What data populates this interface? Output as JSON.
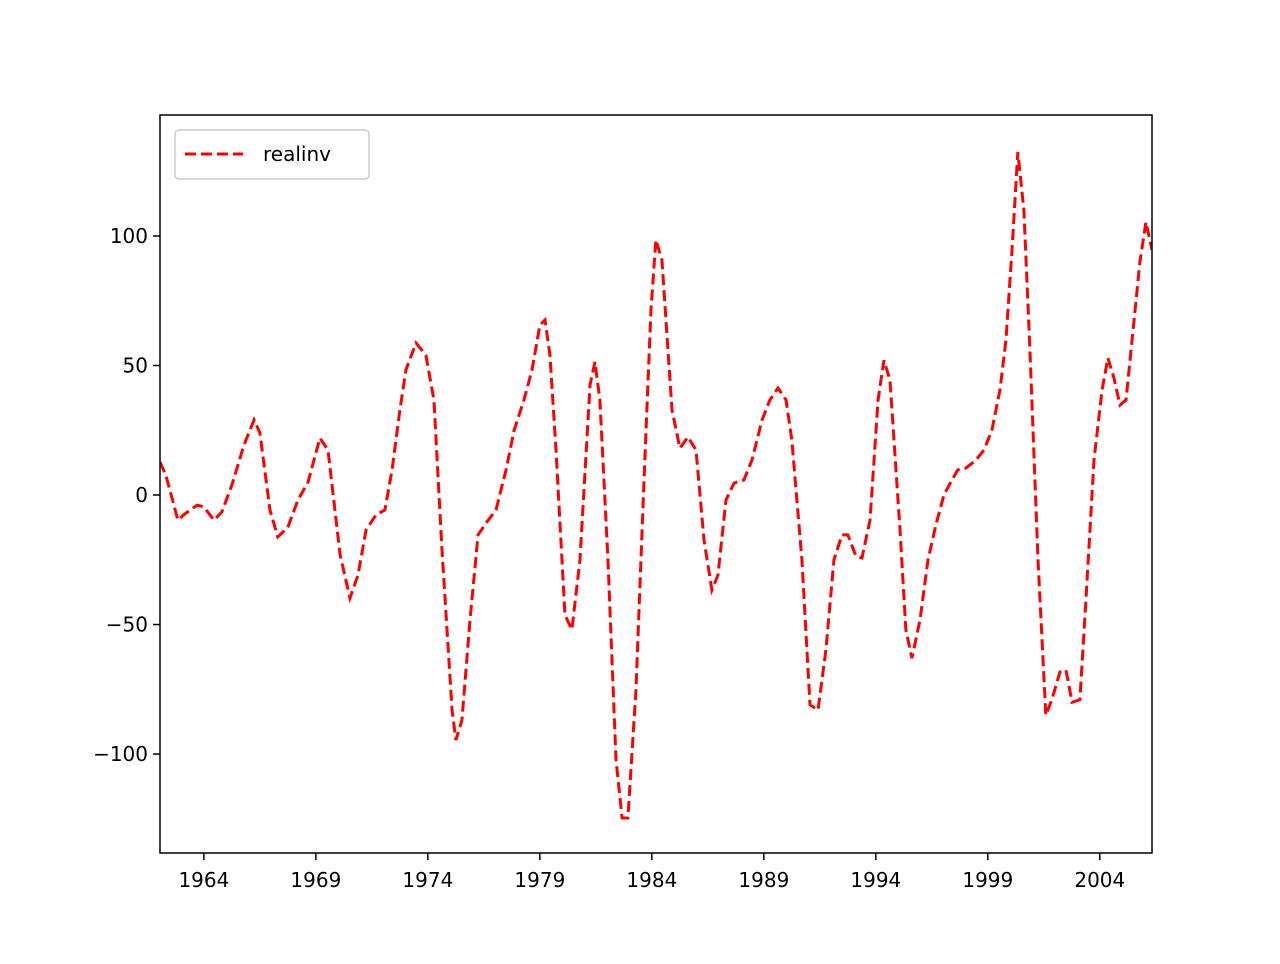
{
  "chart_data": {
    "type": "line",
    "x": [
      1962.04,
      1962.3,
      1962.84,
      1963.15,
      1963.7,
      1964.0,
      1964.45,
      1964.8,
      1965.25,
      1965.79,
      1966.24,
      1966.5,
      1966.95,
      1967.3,
      1967.75,
      1968.2,
      1968.65,
      1969.18,
      1969.54,
      1970.08,
      1970.52,
      1970.88,
      1971.24,
      1971.68,
      1972.08,
      1972.4,
      1972.75,
      1973.02,
      1973.47,
      1973.91,
      1974.27,
      1974.63,
      1975.08,
      1975.25,
      1975.52,
      1975.88,
      1976.24,
      1976.6,
      1977.04,
      1977.49,
      1977.85,
      1978.29,
      1978.65,
      1979.0,
      1979.23,
      1979.45,
      1979.72,
      1980.12,
      1980.43,
      1980.79,
      1981.24,
      1981.46,
      1981.68,
      1982.04,
      1982.4,
      1982.67,
      1982.93,
      1983.29,
      1983.65,
      1983.96,
      1984.18,
      1984.45,
      1984.9,
      1985.25,
      1985.61,
      1985.97,
      1986.33,
      1986.68,
      1986.95,
      1987.31,
      1987.67,
      1988.11,
      1988.47,
      1988.92,
      1989.27,
      1989.63,
      1989.99,
      1990.25,
      1990.7,
      1991.06,
      1991.42,
      1991.77,
      1992.13,
      1992.49,
      1992.75,
      1993.11,
      1993.38,
      1993.74,
      1994.1,
      1994.36,
      1994.63,
      1995.08,
      1995.34,
      1995.61,
      1995.97,
      1996.33,
      1996.68,
      1997.04,
      1997.4,
      1997.66,
      1998.02,
      1998.47,
      1998.83,
      1999.18,
      1999.54,
      1999.81,
      2000.08,
      2000.34,
      2000.61,
      2000.88,
      2001.24,
      2001.59,
      2001.86,
      2002.22,
      2002.49,
      2002.76,
      2003.11,
      2003.38,
      2003.74,
      2004.1,
      2004.36,
      2004.63,
      2004.9,
      2005.17,
      2005.44,
      2005.79,
      2006.06,
      2006.33
    ],
    "series": [
      {
        "name": "realinv",
        "color": "#ff0000",
        "dash": true,
        "values": [
          12.7,
          7.7,
          -9.7,
          -7.3,
          -3.9,
          -4.6,
          -9.7,
          -6.6,
          3.9,
          19.3,
          29,
          24,
          -5.8,
          -16.2,
          -12.4,
          -1.9,
          5,
          22,
          17.4,
          -23,
          -39.8,
          -30.9,
          -13.5,
          -7.7,
          -5.8,
          9.7,
          32.8,
          48.3,
          58.7,
          54,
          36.7,
          -21.2,
          -83,
          -94.6,
          -87,
          -48.3,
          -15.4,
          -10.8,
          -5.8,
          9.7,
          25,
          36.7,
          48.3,
          65.6,
          67.6,
          54,
          17.4,
          -46.3,
          -52,
          -25,
          42.5,
          51.4,
          36.7,
          -25,
          -102.3,
          -124.7,
          -124.7,
          -75.3,
          5.8,
          71.4,
          98.5,
          90.7,
          32.8,
          18.1,
          22.4,
          17.4,
          -17.4,
          -36.7,
          -30.9,
          -1.9,
          4.6,
          5.8,
          13.5,
          29,
          36.7,
          41.3,
          36.7,
          21.2,
          -25,
          -81,
          -83,
          -59.8,
          -25,
          -15.4,
          -15.4,
          -23.6,
          -24.3,
          -9.7,
          36.7,
          52,
          44.4,
          -13.5,
          -52,
          -63,
          -48.3,
          -25,
          -11.6,
          0,
          5.8,
          9.7,
          10.4,
          13.5,
          17.4,
          25,
          40.5,
          59.8,
          94.6,
          132.4,
          110,
          56,
          -25,
          -85,
          -79,
          -68.3,
          -67.6,
          -80,
          -79,
          -40.5,
          13.5,
          40.5,
          52.9,
          45.2,
          34.7,
          36.7,
          59.8,
          90,
          105.4,
          94.6
        ]
      }
    ],
    "xlim": [
      1962.04,
      2006.33
    ],
    "xticks": [
      1964,
      1969,
      1974,
      1979,
      1984,
      1989,
      1994,
      1999,
      2004
    ],
    "ylim": [
      -138.2,
      146.7
    ],
    "yticks": [
      {
        "value": -100,
        "label": "−100"
      },
      {
        "value": -50,
        "label": "−50"
      },
      0,
      50,
      100
    ],
    "legend": "upper left"
  }
}
